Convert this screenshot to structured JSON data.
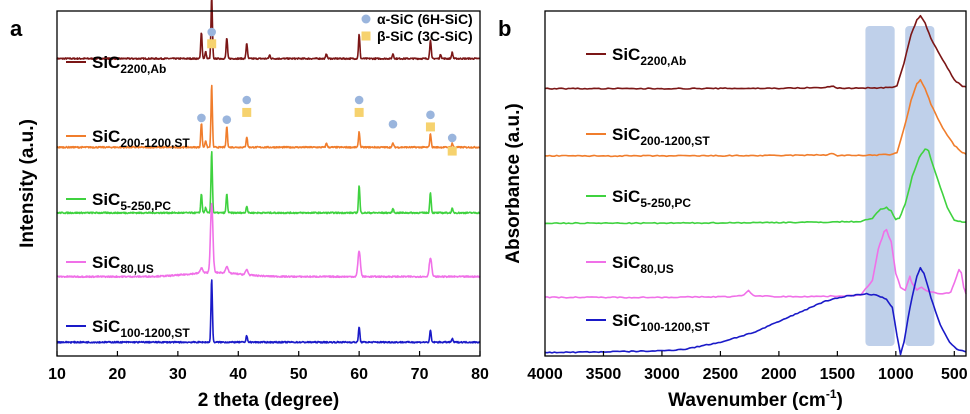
{
  "chart_data": [
    {
      "panel": "a",
      "type": "line",
      "xlabel": "2 theta (degree)",
      "ylabel": "Intensity (a.u.)",
      "xlim": [
        10,
        80
      ],
      "xticks": [
        10,
        20,
        30,
        40,
        50,
        60,
        70,
        80
      ],
      "ylim": [
        0,
        1
      ],
      "y_ticks_shown": false,
      "legend_position": "top-right",
      "legend": [
        {
          "label": "α-SiC (6H-SiC)",
          "marker": "circle",
          "color": "#9ab5dd"
        },
        {
          "label": "β-SiC (3C-SiC)",
          "marker": "square",
          "color": "#f6d26e"
        }
      ],
      "series": [
        {
          "name": "SiC",
          "sub": "2200,Ab",
          "color": "#7b1616",
          "baseline": 0.862,
          "peaks": [
            [
              33.9,
              0.075
            ],
            [
              34.6,
              0.02
            ],
            [
              35.6,
              0.182
            ],
            [
              38.1,
              0.06
            ],
            [
              41.4,
              0.045
            ],
            [
              45.2,
              0.01
            ],
            [
              54.6,
              0.014
            ],
            [
              60.0,
              0.07
            ],
            [
              65.6,
              0.014
            ],
            [
              71.8,
              0.055
            ],
            [
              73.5,
              0.012
            ],
            [
              75.4,
              0.018
            ]
          ],
          "markers": [
            {
              "type": "alpha",
              "x": 33.9,
              "y": 0.69
            },
            {
              "type": "alpha",
              "x": 35.6,
              "y": 0.939
            },
            {
              "type": "beta",
              "x": 35.6,
              "y": 0.905
            },
            {
              "type": "alpha",
              "x": 38.1,
              "y": 0.685
            },
            {
              "type": "alpha",
              "x": 41.4,
              "y": 0.742
            },
            {
              "type": "beta",
              "x": 41.4,
              "y": 0.706
            },
            {
              "type": "alpha",
              "x": 60.0,
              "y": 0.742
            },
            {
              "type": "beta",
              "x": 60.0,
              "y": 0.706
            },
            {
              "type": "alpha",
              "x": 65.6,
              "y": 0.672
            },
            {
              "type": "alpha",
              "x": 71.8,
              "y": 0.699
            },
            {
              "type": "beta",
              "x": 71.8,
              "y": 0.664
            },
            {
              "type": "alpha",
              "x": 75.4,
              "y": 0.632
            },
            {
              "type": "beta",
              "x": 75.4,
              "y": 0.594
            }
          ]
        },
        {
          "name": "SiC",
          "sub": "200-1200,ST",
          "color": "#f07d2c",
          "baseline": 0.605,
          "peaks": [
            [
              33.9,
              0.07
            ],
            [
              34.6,
              0.02
            ],
            [
              35.6,
              0.18
            ],
            [
              38.1,
              0.06
            ],
            [
              41.4,
              0.03
            ],
            [
              54.6,
              0.012
            ],
            [
              60.0,
              0.045
            ],
            [
              65.6,
              0.012
            ],
            [
              71.8,
              0.04
            ],
            [
              75.4,
              0.012
            ]
          ]
        },
        {
          "name": "SiC",
          "sub": "5-250,PC",
          "color": "#3fd23f",
          "baseline": 0.415,
          "peaks": [
            [
              33.9,
              0.055
            ],
            [
              34.6,
              0.015
            ],
            [
              35.6,
              0.18
            ],
            [
              38.1,
              0.055
            ],
            [
              41.4,
              0.02
            ],
            [
              60.0,
              0.08
            ],
            [
              65.6,
              0.012
            ],
            [
              71.8,
              0.06
            ],
            [
              75.4,
              0.012
            ]
          ]
        },
        {
          "name": "SiC",
          "sub": "80,US",
          "color": "#f070e8",
          "baseline": 0.23,
          "peaks": [
            [
              33.9,
              0.015
            ],
            [
              35.6,
              0.2
            ],
            [
              38.1,
              0.02
            ],
            [
              41.4,
              0.015
            ],
            [
              60.0,
              0.075
            ],
            [
              71.8,
              0.055
            ]
          ]
        },
        {
          "name": "SiC",
          "sub": "100-1200,ST",
          "color": "#1a1ac8",
          "baseline": 0.04,
          "peaks": [
            [
              35.6,
              0.185
            ],
            [
              41.4,
              0.02
            ],
            [
              60.0,
              0.045
            ],
            [
              71.8,
              0.035
            ],
            [
              75.4,
              0.01
            ]
          ]
        }
      ]
    },
    {
      "panel": "b",
      "type": "line",
      "xlabel": "Wavenumber (cm",
      "xlabel_sup": "-1",
      "xlabel_tail": ")",
      "ylabel": "Absorbance (a.u.)",
      "xlim": [
        4000,
        400
      ],
      "xticks": [
        4000,
        3500,
        3000,
        2500,
        2000,
        1500,
        1000,
        500
      ],
      "ylim": [
        0,
        1
      ],
      "y_ticks_shown": false,
      "highlight_bands": [
        [
          1260,
          1010
        ],
        [
          920,
          670
        ]
      ],
      "highlight_color": "#b4c8e6",
      "series": [
        {
          "name": "SiC",
          "sub": "2200,Ab",
          "color": "#7b1616",
          "points": [
            [
              4000,
              0.775
            ],
            [
              3000,
              0.775
            ],
            [
              2000,
              0.776
            ],
            [
              1600,
              0.778
            ],
            [
              1550,
              0.783
            ],
            [
              1500,
              0.776
            ],
            [
              1200,
              0.777
            ],
            [
              1050,
              0.778
            ],
            [
              990,
              0.782
            ],
            [
              930,
              0.85
            ],
            [
              870,
              0.93
            ],
            [
              820,
              0.975
            ],
            [
              790,
              0.985
            ],
            [
              750,
              0.965
            ],
            [
              700,
              0.92
            ],
            [
              600,
              0.86
            ],
            [
              500,
              0.8
            ],
            [
              430,
              0.782
            ],
            [
              400,
              0.78
            ]
          ]
        },
        {
          "name": "SiC",
          "sub": "200-1200,ST",
          "color": "#f07d2c",
          "points": [
            [
              4000,
              0.58
            ],
            [
              3000,
              0.58
            ],
            [
              2000,
              0.581
            ],
            [
              1600,
              0.583
            ],
            [
              1550,
              0.587
            ],
            [
              1500,
              0.581
            ],
            [
              1200,
              0.582
            ],
            [
              1050,
              0.584
            ],
            [
              990,
              0.588
            ],
            [
              930,
              0.66
            ],
            [
              870,
              0.74
            ],
            [
              820,
              0.79
            ],
            [
              790,
              0.8
            ],
            [
              750,
              0.775
            ],
            [
              700,
              0.73
            ],
            [
              600,
              0.66
            ],
            [
              500,
              0.61
            ],
            [
              430,
              0.59
            ],
            [
              400,
              0.585
            ]
          ]
        },
        {
          "name": "SiC",
          "sub": "5-250,PC",
          "color": "#3fd23f",
          "points": [
            [
              4000,
              0.385
            ],
            [
              3000,
              0.385
            ],
            [
              2000,
              0.387
            ],
            [
              1600,
              0.388
            ],
            [
              1300,
              0.39
            ],
            [
              1200,
              0.4
            ],
            [
              1130,
              0.425
            ],
            [
              1080,
              0.43
            ],
            [
              1040,
              0.42
            ],
            [
              1000,
              0.395
            ],
            [
              970,
              0.4
            ],
            [
              920,
              0.44
            ],
            [
              860,
              0.52
            ],
            [
              800,
              0.575
            ],
            [
              750,
              0.6
            ],
            [
              720,
              0.595
            ],
            [
              680,
              0.55
            ],
            [
              620,
              0.49
            ],
            [
              560,
              0.43
            ],
            [
              500,
              0.395
            ],
            [
              450,
              0.39
            ],
            [
              400,
              0.388
            ]
          ]
        },
        {
          "name": "SiC",
          "sub": "80,US",
          "color": "#f070e8",
          "points": [
            [
              4000,
              0.17
            ],
            [
              3000,
              0.17
            ],
            [
              2400,
              0.172
            ],
            [
              2300,
              0.176
            ],
            [
              2260,
              0.19
            ],
            [
              2220,
              0.175
            ],
            [
              2000,
              0.172
            ],
            [
              1600,
              0.173
            ],
            [
              1300,
              0.176
            ],
            [
              1200,
              0.22
            ],
            [
              1150,
              0.31
            ],
            [
              1100,
              0.36
            ],
            [
              1080,
              0.365
            ],
            [
              1040,
              0.33
            ],
            [
              1000,
              0.24
            ],
            [
              960,
              0.2
            ],
            [
              920,
              0.19
            ],
            [
              900,
              0.21
            ],
            [
              880,
              0.23
            ],
            [
              860,
              0.21
            ],
            [
              820,
              0.19
            ],
            [
              780,
              0.2
            ],
            [
              740,
              0.19
            ],
            [
              700,
              0.185
            ],
            [
              600,
              0.18
            ],
            [
              530,
              0.185
            ],
            [
              480,
              0.23
            ],
            [
              460,
              0.25
            ],
            [
              440,
              0.24
            ],
            [
              420,
              0.2
            ],
            [
              400,
              0.18
            ]
          ]
        },
        {
          "name": "SiC",
          "sub": "100-1200,ST",
          "color": "#1a1ac8",
          "points": [
            [
              4000,
              0.01
            ],
            [
              3500,
              0.012
            ],
            [
              3000,
              0.015
            ],
            [
              2800,
              0.02
            ],
            [
              2500,
              0.04
            ],
            [
              2200,
              0.07
            ],
            [
              2000,
              0.1
            ],
            [
              1800,
              0.13
            ],
            [
              1600,
              0.16
            ],
            [
              1400,
              0.175
            ],
            [
              1250,
              0.18
            ],
            [
              1150,
              0.175
            ],
            [
              1080,
              0.165
            ],
            [
              1030,
              0.14
            ],
            [
              990,
              0.06
            ],
            [
              960,
              0.005
            ],
            [
              930,
              0.04
            ],
            [
              880,
              0.14
            ],
            [
              820,
              0.23
            ],
            [
              790,
              0.255
            ],
            [
              760,
              0.24
            ],
            [
              700,
              0.17
            ],
            [
              620,
              0.09
            ],
            [
              540,
              0.04
            ],
            [
              480,
              0.02
            ],
            [
              430,
              0.015
            ],
            [
              400,
              0.012
            ]
          ]
        }
      ]
    }
  ]
}
